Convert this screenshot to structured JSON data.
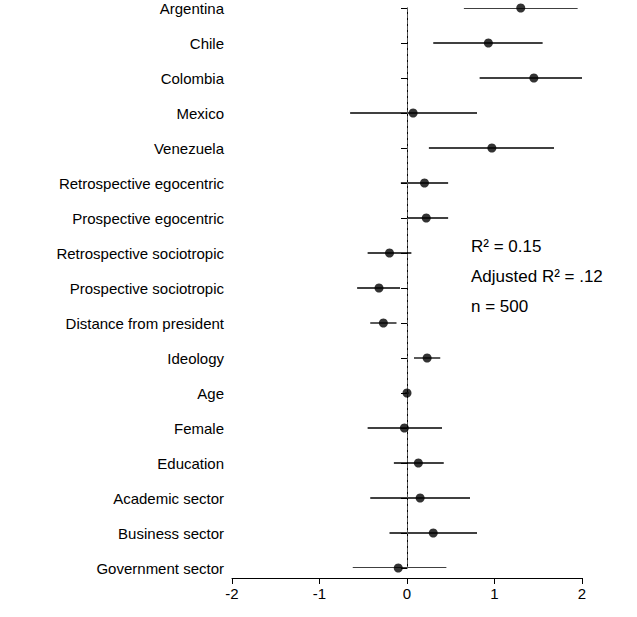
{
  "chart_data": {
    "type": "scatter",
    "orientation": "horizontal",
    "categories": [
      "Argentina",
      "Chile",
      "Colombia",
      "Mexico",
      "Venezuela",
      "Retrospective egocentric",
      "Prospective egocentric",
      "Retrospective sociotropic",
      "Prospective sociotropic",
      "Distance from president",
      "Ideology",
      "Age",
      "Female",
      "Education",
      "Academic sector",
      "Business sector",
      "Government sector"
    ],
    "values": [
      1.3,
      0.93,
      1.45,
      0.07,
      0.97,
      0.2,
      0.22,
      -0.2,
      -0.32,
      -0.27,
      0.23,
      0.0,
      -0.03,
      0.13,
      0.15,
      0.3,
      -0.1
    ],
    "ci_low": [
      0.65,
      0.3,
      0.83,
      -0.65,
      0.25,
      -0.07,
      0.0,
      -0.45,
      -0.57,
      -0.42,
      0.08,
      -0.02,
      -0.45,
      -0.15,
      -0.42,
      -0.2,
      -0.62
    ],
    "ci_high": [
      1.95,
      1.55,
      2.0,
      0.8,
      1.68,
      0.47,
      0.47,
      0.05,
      -0.08,
      -0.12,
      0.38,
      0.02,
      0.4,
      0.42,
      0.72,
      0.8,
      0.45
    ],
    "color": "#000000",
    "marker": "circle",
    "vline": 0,
    "xlim": [
      -2,
      2
    ],
    "xticks": [
      -2,
      -1,
      0,
      1,
      2
    ],
    "annotations": [
      "R² = 0.15",
      "Adjusted R² = .12",
      "n = 500"
    ],
    "grid": false
  }
}
